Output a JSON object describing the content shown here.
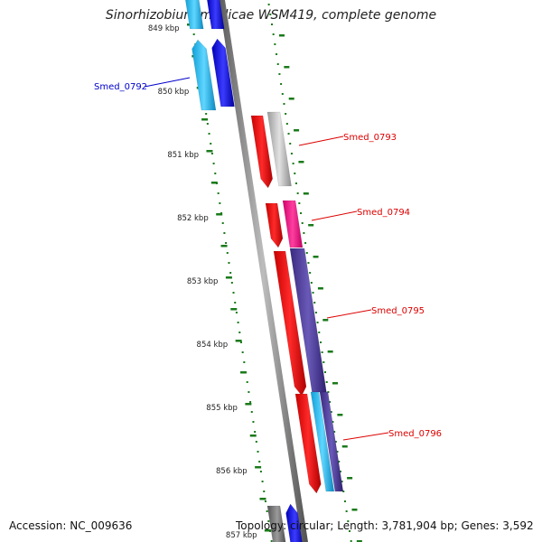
{
  "title": "Sinorhizobium medicae WSM419, complete genome",
  "accession": "Accession: NC_009636",
  "topology": "Topology: circular; Length: 3,781,904 bp; Genes: 3,592",
  "colors": {
    "backbone": "#8c8c8c",
    "tick": "#1a7a1a",
    "kbp_label": "#222222",
    "gene_label_blue": "#0000cc",
    "gene_label_red": "#dd0000"
  },
  "kbp_labels": [
    "849 kbp",
    "850 kbp",
    "851 kbp",
    "852 kbp",
    "853 kbp",
    "854 kbp",
    "855 kbp",
    "856 kbp",
    "857 kbp"
  ],
  "gene_labels": [
    {
      "text": "Smed_0792",
      "color": "blue"
    },
    {
      "text": "Smed_0793",
      "color": "red"
    },
    {
      "text": "Smed_0794",
      "color": "red"
    },
    {
      "text": "Smed_0795",
      "color": "red"
    },
    {
      "text": "Smed_0796",
      "color": "red"
    }
  ]
}
